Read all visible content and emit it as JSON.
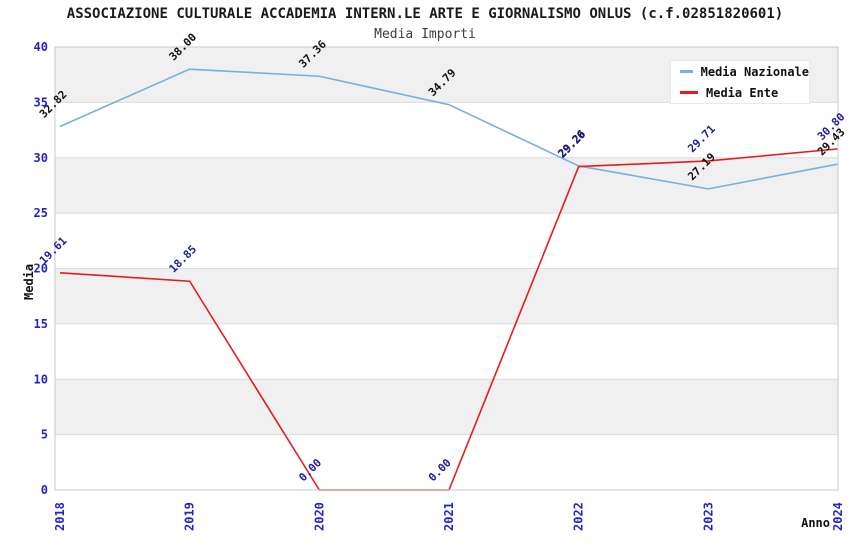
{
  "title": "ASSOCIAZIONE CULTURALE ACCADEMIA INTERN.LE ARTE E GIORNALISMO ONLUS (c.f.02851820601)",
  "subtitle": "Media Importi",
  "legend": [
    {
      "label": "Media Nazionale",
      "color": "#79afe1"
    },
    {
      "label": "Media Ente",
      "color": "#e51c1c"
    }
  ],
  "chart_data": {
    "type": "line",
    "categories": [
      "2018",
      "2019",
      "2020",
      "2021",
      "2022",
      "2023",
      "2024"
    ],
    "series": [
      {
        "name": "Media Nazionale",
        "color": "#79afe1",
        "label_color": "#111111",
        "values": [
          32.82,
          38.0,
          37.36,
          34.79,
          29.26,
          27.19,
          29.43
        ]
      },
      {
        "name": "Media Ente",
        "color": "#e51c1c",
        "label_color": "#1e1e96",
        "values": [
          19.61,
          18.85,
          0.0,
          0.0,
          29.2,
          29.71,
          30.8
        ]
      }
    ],
    "xlabel": "Anno",
    "ylabel": "Media",
    "ylim": [
      0,
      40
    ],
    "ytick_step": 5,
    "grid": true,
    "band_fill": "#f0f0f0",
    "gridline_color": "#dcdcdc",
    "plot_border_color": "#c8c8c8",
    "tick_label_color": "#2323cc",
    "axis_title_color": "#111111",
    "legend_position": "top-right"
  }
}
